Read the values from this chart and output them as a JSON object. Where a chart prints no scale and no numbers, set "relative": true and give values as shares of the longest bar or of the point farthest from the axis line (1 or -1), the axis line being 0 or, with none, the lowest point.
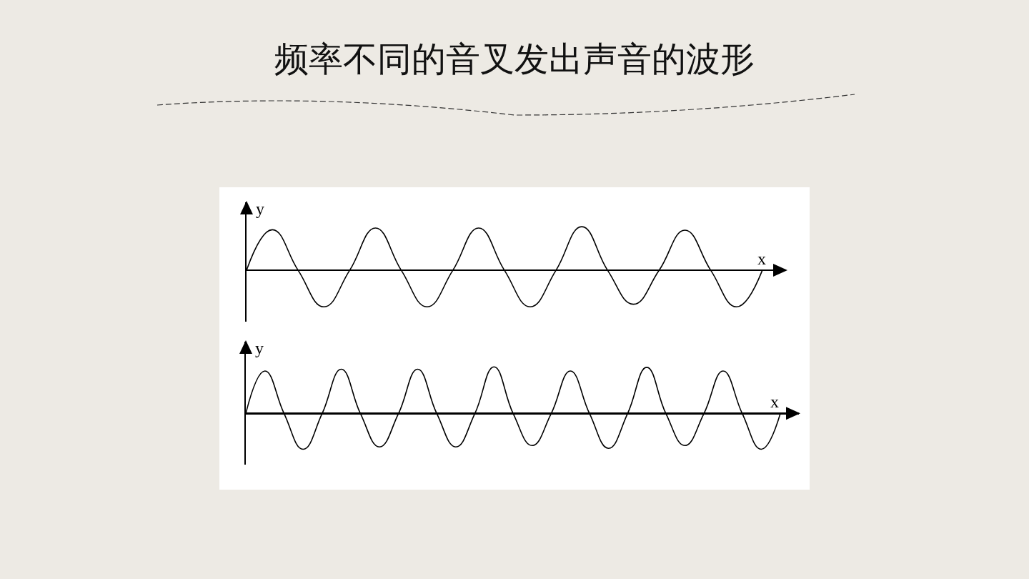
{
  "chart_data": [
    {
      "type": "line",
      "title": "频率不同的音叉发出声音的波形",
      "xlabel": "x",
      "ylabel": "y",
      "relative": true,
      "categories": [
        null,
        null,
        null,
        null,
        null,
        null,
        null,
        null,
        null,
        null,
        null,
        null,
        null,
        null,
        null,
        null,
        null,
        null,
        null,
        null,
        null
      ],
      "series": [
        {
          "color": "#000000",
          "values": [
            0,
            0.93,
            0,
            -0.84,
            0,
            0.97,
            0,
            -0.84,
            0,
            0.97,
            0,
            -0.84,
            0,
            1,
            0,
            -0.78,
            0,
            0.92,
            0,
            -0.84,
            0
          ]
        }
      ]
    },
    {
      "type": "line",
      "xlabel": "x",
      "ylabel": "y",
      "relative": true,
      "categories": [
        null,
        null,
        null,
        null,
        null,
        null,
        null,
        null,
        null,
        null,
        null,
        null,
        null,
        null,
        null,
        null,
        null,
        null,
        null,
        null,
        null,
        null,
        null,
        null,
        null,
        null,
        null,
        null,
        null
      ],
      "series": [
        {
          "color": "#000000",
          "values": [
            0,
            0.91,
            0,
            -0.77,
            0,
            0.95,
            0,
            -0.72,
            0,
            0.95,
            0,
            -0.72,
            0,
            1,
            0,
            -0.69,
            0,
            0.91,
            0,
            -0.75,
            0,
            0.99,
            0,
            -0.69,
            0,
            0.91,
            0,
            -0.77,
            0
          ]
        }
      ]
    }
  ]
}
